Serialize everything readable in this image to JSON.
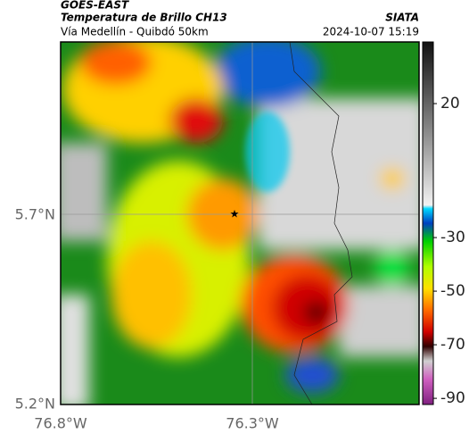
{
  "header": {
    "source": "GOES-EAST",
    "title": "Temperatura de Brillo CH13",
    "subtitle": "Vía Medellín - Quibdó 50km",
    "organization": "SIATA",
    "datetime": "2024-10-07 15:19"
  },
  "axes": {
    "lat_labels": [
      "5.7°N",
      "5.2°N"
    ],
    "lon_labels": [
      "76.8°W",
      "76.3°W"
    ]
  },
  "colorbar": {
    "ticks": [
      20,
      -30,
      -50,
      -70,
      -90
    ]
  }
}
